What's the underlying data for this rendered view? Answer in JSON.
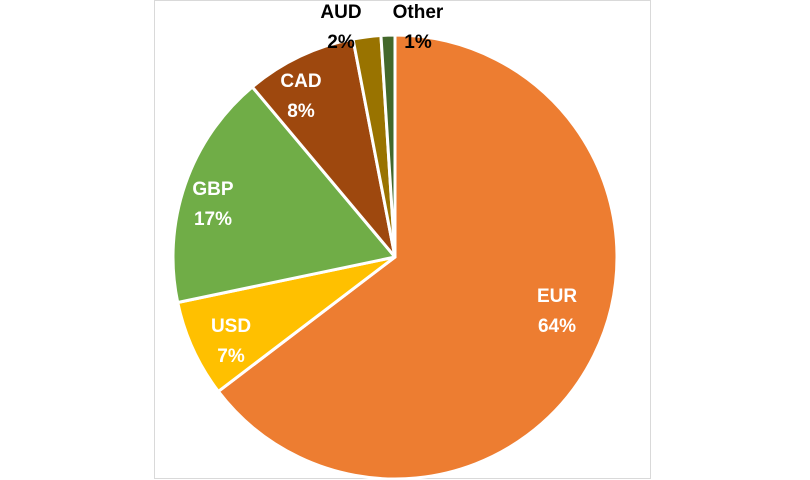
{
  "chart_data": {
    "type": "pie",
    "title": "",
    "start_angle_deg": 0,
    "direction": "clockwise",
    "slices": [
      {
        "label": "EUR",
        "value": 64,
        "percent_label": "64%",
        "color": "#ed7d31",
        "label_color": "#ffffff"
      },
      {
        "label": "USD",
        "value": 7,
        "percent_label": "7%",
        "color": "#ffc000",
        "label_color": "#ffffff"
      },
      {
        "label": "GBP",
        "value": 17,
        "percent_label": "17%",
        "color": "#70ad47",
        "label_color": "#ffffff"
      },
      {
        "label": "CAD",
        "value": 8,
        "percent_label": "8%",
        "color": "#9e480e",
        "label_color": "#ffffff"
      },
      {
        "label": "AUD",
        "value": 2,
        "percent_label": "2%",
        "color": "#997300",
        "label_color": "#000000"
      },
      {
        "label": "Other",
        "value": 1,
        "percent_label": "1%",
        "color": "#43682b",
        "label_color": "#000000"
      }
    ],
    "legend": "none",
    "data_labels": "category and percent"
  }
}
